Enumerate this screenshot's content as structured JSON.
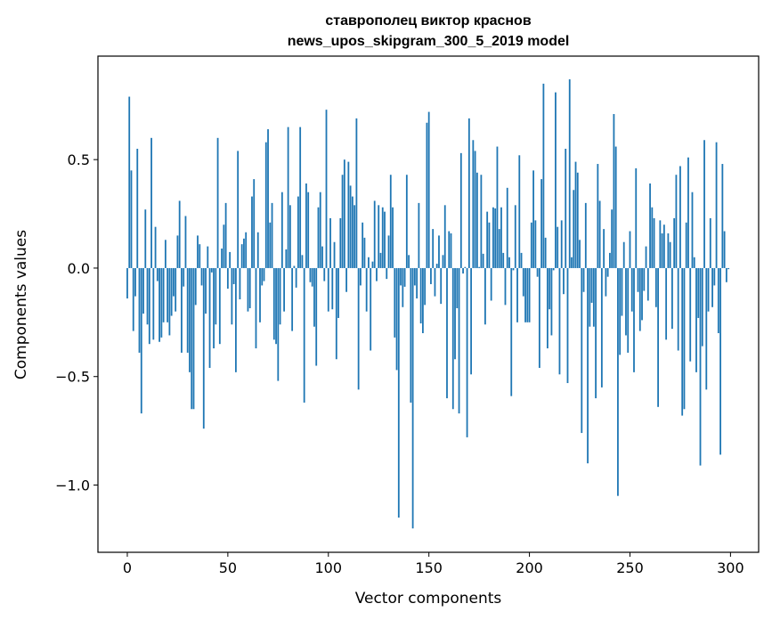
{
  "chart_data": {
    "type": "bar",
    "title_lines": [
      "ставрополец виктор краснов",
      "news_upos_skipgram_300_5_2019 model"
    ],
    "xlabel": "Vector components",
    "ylabel": "Components values",
    "xlim": [
      -14.6,
      314.0
    ],
    "ylim": [
      -1.31,
      0.977
    ],
    "xticks": [
      0,
      50,
      100,
      150,
      200,
      250,
      300
    ],
    "xtick_labels": [
      "0",
      "50",
      "100",
      "150",
      "200",
      "250",
      "300"
    ],
    "yticks": [
      -1.0,
      -0.5,
      0.0,
      0.5
    ],
    "ytick_labels": [
      "−1.0",
      "−0.5",
      "0.0",
      "0.5"
    ],
    "grid": false,
    "bar_color": "#1f77b4",
    "bar_width": 0.8,
    "values": [
      -0.14,
      0.79,
      0.45,
      -0.29,
      -0.13,
      0.55,
      -0.39,
      -0.67,
      -0.21,
      0.27,
      -0.26,
      -0.35,
      0.6,
      -0.33,
      0.19,
      -0.06,
      -0.34,
      -0.32,
      -0.25,
      0.13,
      -0.25,
      -0.31,
      -0.22,
      -0.13,
      -0.2,
      0.15,
      0.31,
      -0.39,
      -0.085,
      0.24,
      -0.39,
      -0.48,
      -0.65,
      -0.65,
      -0.17,
      0.15,
      0.11,
      -0.08,
      -0.74,
      -0.21,
      0.1,
      -0.46,
      -0.02,
      -0.37,
      -0.26,
      0.6,
      -0.35,
      0.09,
      0.2,
      0.3,
      -0.095,
      0.074,
      -0.26,
      -0.074,
      -0.48,
      0.54,
      -0.144,
      0.11,
      0.136,
      0.165,
      -0.2,
      -0.185,
      0.33,
      0.41,
      -0.37,
      0.165,
      -0.25,
      -0.08,
      -0.06,
      0.58,
      0.64,
      0.21,
      0.3,
      -0.33,
      -0.35,
      -0.52,
      -0.26,
      0.35,
      -0.2,
      0.086,
      0.65,
      0.29,
      -0.29,
      0.01,
      -0.09,
      0.33,
      0.65,
      0.06,
      -0.62,
      0.39,
      0.35,
      -0.065,
      -0.085,
      -0.27,
      -0.45,
      0.28,
      0.35,
      0.1,
      -0.06,
      0.73,
      -0.2,
      0.23,
      -0.19,
      0.12,
      -0.42,
      -0.23,
      0.23,
      0.43,
      0.5,
      -0.11,
      0.49,
      0.38,
      0.33,
      0.29,
      0.69,
      -0.56,
      -0.08,
      0.21,
      0.14,
      -0.2,
      0.05,
      -0.38,
      0.03,
      0.31,
      -0.06,
      0.29,
      0.07,
      0.28,
      0.26,
      -0.05,
      0.15,
      0.43,
      0.28,
      -0.32,
      -0.47,
      -1.15,
      -0.08,
      -0.18,
      -0.086,
      0.43,
      0.06,
      -0.62,
      -1.2,
      -0.08,
      -0.14,
      0.3,
      -0.255,
      -0.3,
      -0.17,
      0.67,
      0.72,
      -0.074,
      0.18,
      -0.13,
      0.02,
      0.15,
      -0.165,
      0.06,
      0.29,
      -0.6,
      0.17,
      0.16,
      -0.65,
      -0.42,
      -0.185,
      -0.67,
      0.53,
      -0.025,
      0.005,
      -0.78,
      0.69,
      -0.49,
      0.59,
      0.54,
      0.44,
      0.005,
      0.43,
      0.066,
      -0.26,
      0.26,
      0.21,
      -0.15,
      0.28,
      0.275,
      0.56,
      0.18,
      0.28,
      0.07,
      -0.17,
      0.37,
      0.05,
      -0.59,
      -0.01,
      0.29,
      -0.25,
      0.52,
      0.07,
      -0.13,
      -0.25,
      -0.25,
      -0.25,
      0.21,
      0.45,
      0.22,
      -0.04,
      -0.46,
      0.41,
      0.85,
      0.14,
      -0.37,
      -0.19,
      -0.31,
      -0.01,
      0.81,
      0.19,
      -0.49,
      0.22,
      -0.12,
      0.55,
      -0.53,
      0.87,
      0.05,
      0.36,
      0.49,
      0.44,
      0.13,
      -0.76,
      -0.11,
      0.3,
      -0.9,
      -0.27,
      -0.16,
      -0.27,
      -0.6,
      0.48,
      0.31,
      -0.55,
      0.18,
      -0.13,
      -0.04,
      0.07,
      0.27,
      0.71,
      0.56,
      -1.05,
      -0.4,
      -0.22,
      0.12,
      -0.31,
      -0.39,
      0.17,
      -0.2,
      -0.48,
      0.46,
      -0.11,
      -0.29,
      -0.24,
      -0.105,
      0.1,
      -0.15,
      0.39,
      0.28,
      0.23,
      -0.18,
      -0.64,
      0.22,
      0.16,
      0.2,
      -0.33,
      0.16,
      0.12,
      -0.28,
      0.23,
      0.43,
      -0.38,
      0.47,
      -0.68,
      -0.65,
      0.21,
      0.51,
      -0.43,
      0.35,
      0.05,
      -0.48,
      -0.23,
      -0.91,
      -0.36,
      0.59,
      -0.56,
      -0.2,
      0.23,
      -0.18,
      -0.08,
      0.58,
      -0.3,
      -0.86,
      0.48,
      0.17,
      -0.065,
      -0.005
    ]
  }
}
